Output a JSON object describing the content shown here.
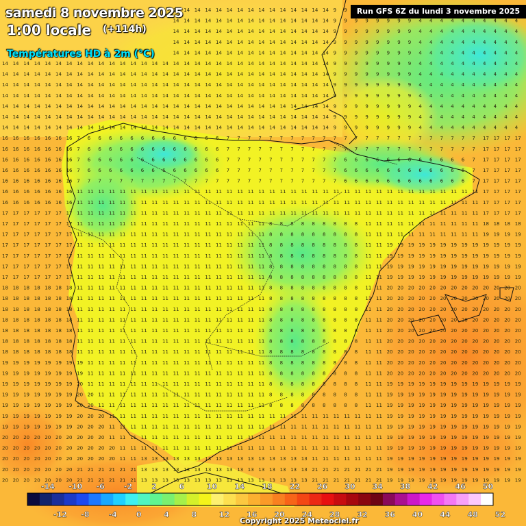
{
  "header": {
    "date": "samedi 8 novembre 2025",
    "time": "1:00 locale",
    "offset": "(+114h)",
    "variable": "Températures HD à 2m (°C)",
    "run": "Run GFS 6Z du lundi 3 novembre 2025"
  },
  "copyright": "Copyright 2025 Meteociel.fr",
  "legend": {
    "upper_labels": [
      "-14",
      "-10",
      "-6",
      "-2",
      "2",
      "6",
      "10",
      "14",
      "18",
      "22",
      "26",
      "30",
      "34",
      "38",
      "42",
      "46",
      "50"
    ],
    "lower_labels": [
      "-12",
      "-8",
      "-4",
      "0",
      "4",
      "8",
      "12",
      "16",
      "20",
      "24",
      "28",
      "32",
      "36",
      "40",
      "44",
      "48",
      "52"
    ],
    "colors": [
      "#0b0b3d",
      "#12246b",
      "#1a2f9a",
      "#1c3ac8",
      "#1e49f0",
      "#1e78ff",
      "#18a8ff",
      "#20d0ff",
      "#3ef0f0",
      "#50f5c0",
      "#60f590",
      "#7af070",
      "#a6f04a",
      "#d4f02a",
      "#f4f41a",
      "#fdf070",
      "#fde050",
      "#fcc840",
      "#fbb030",
      "#fa9a28",
      "#f98020",
      "#f86418",
      "#f44614",
      "#ec2814",
      "#e81010",
      "#c80c10",
      "#a8080e",
      "#8a0610",
      "#6e0414",
      "#8a0a5a",
      "#aa1090",
      "#cc18c8",
      "#e828e8",
      "#f050f0",
      "#f478f4",
      "#f8a0f8",
      "#fcc8fc",
      "#ffffff"
    ]
  },
  "map_numbers": {
    "tokens": [
      "15",
      "16",
      "17",
      "18",
      "19",
      "20",
      "12",
      "13",
      "14",
      "11",
      "10",
      "9",
      "8",
      "7",
      "6",
      "5",
      "4"
    ],
    "note_values": "grid of 2m temperature values in °C printed over the map"
  }
}
